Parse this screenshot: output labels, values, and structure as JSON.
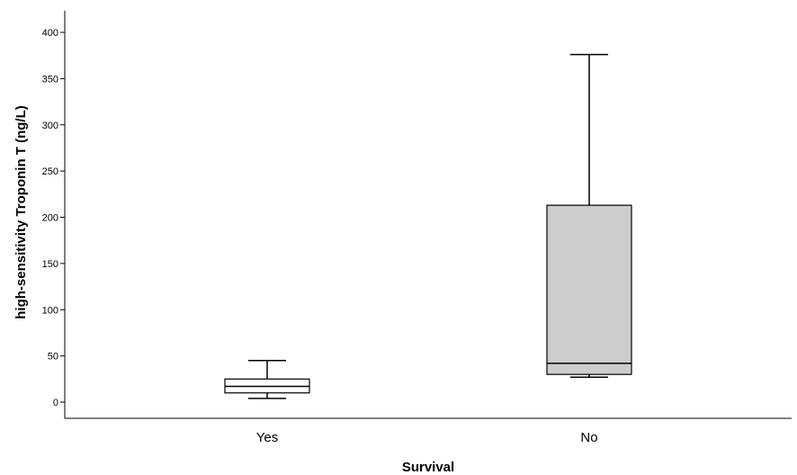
{
  "chart_data": {
    "type": "boxplot",
    "title": "",
    "xlabel": "Survival",
    "ylabel": "high-sensitivity Troponin T (ng/L)",
    "ylim": [
      -15,
      420
    ],
    "yticks": [
      0,
      50,
      100,
      150,
      200,
      250,
      300,
      350,
      400
    ],
    "grid": false,
    "categories": [
      "Yes",
      "No"
    ],
    "boxes": [
      {
        "category": "Yes",
        "whisker_low": 4,
        "q1": 10,
        "median": 17,
        "q3": 25,
        "whisker_high": 45,
        "fill": "#ffffff"
      },
      {
        "category": "No",
        "whisker_low": 27,
        "q1": 30,
        "median": 42,
        "q3": 213,
        "whisker_high": 376,
        "fill": "#cccccc"
      }
    ]
  }
}
